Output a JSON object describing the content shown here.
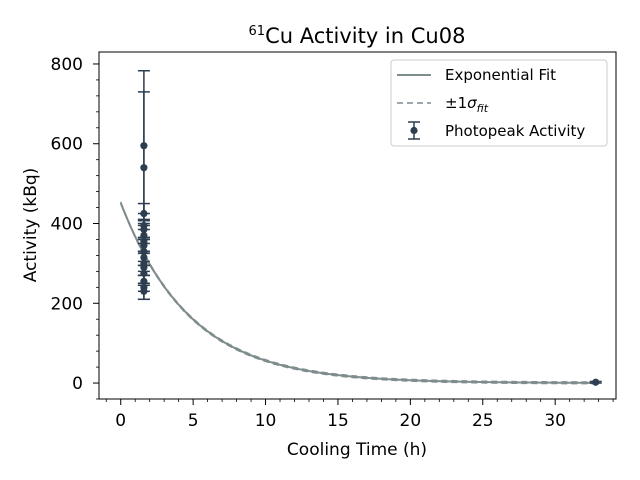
{
  "chart_data": {
    "type": "scatter",
    "title_isotope": "61",
    "title_text": "Cu Activity in Cu08",
    "xlabel": "Cooling Time (h)",
    "ylabel": "Activity (kBq)",
    "xlim": [
      -1.5,
      34.2
    ],
    "ylim": [
      -40,
      830
    ],
    "xticks": [
      0,
      5,
      10,
      15,
      20,
      25,
      30
    ],
    "yticks": [
      0,
      200,
      400,
      600,
      800
    ],
    "grid": false,
    "legend_position": "top-right",
    "colors": {
      "fit": "#7f8c8d",
      "points": "#2c3e50"
    },
    "fit": {
      "name": "Exponential Fit",
      "A0": 452,
      "half_life_h": 3.33,
      "x_start": 0,
      "x_end": 33
    },
    "uncertainty": {
      "name_prefix": "±1",
      "name_symbol": "σ",
      "name_subscript": "fit"
    },
    "series": [
      {
        "name": "Photopeak Activity",
        "points": [
          {
            "x": 1.6,
            "y": 595,
            "err": 188
          },
          {
            "x": 1.6,
            "y": 540,
            "err": 190
          },
          {
            "x": 1.6,
            "y": 425,
            "err": 25
          },
          {
            "x": 1.6,
            "y": 395,
            "err": 30
          },
          {
            "x": 1.6,
            "y": 385,
            "err": 25
          },
          {
            "x": 1.6,
            "y": 370,
            "err": 40
          },
          {
            "x": 1.6,
            "y": 355,
            "err": 30
          },
          {
            "x": 1.6,
            "y": 345,
            "err": 50
          },
          {
            "x": 1.6,
            "y": 330,
            "err": 35
          },
          {
            "x": 1.6,
            "y": 315,
            "err": 45
          },
          {
            "x": 1.6,
            "y": 300,
            "err": 30
          },
          {
            "x": 1.6,
            "y": 290,
            "err": 40
          },
          {
            "x": 1.6,
            "y": 275,
            "err": 30
          },
          {
            "x": 1.6,
            "y": 255,
            "err": 25
          },
          {
            "x": 1.6,
            "y": 240,
            "err": 30
          },
          {
            "x": 1.6,
            "y": 230,
            "err": 20
          },
          {
            "x": 32.8,
            "y": 2,
            "err": 2
          }
        ]
      }
    ]
  }
}
